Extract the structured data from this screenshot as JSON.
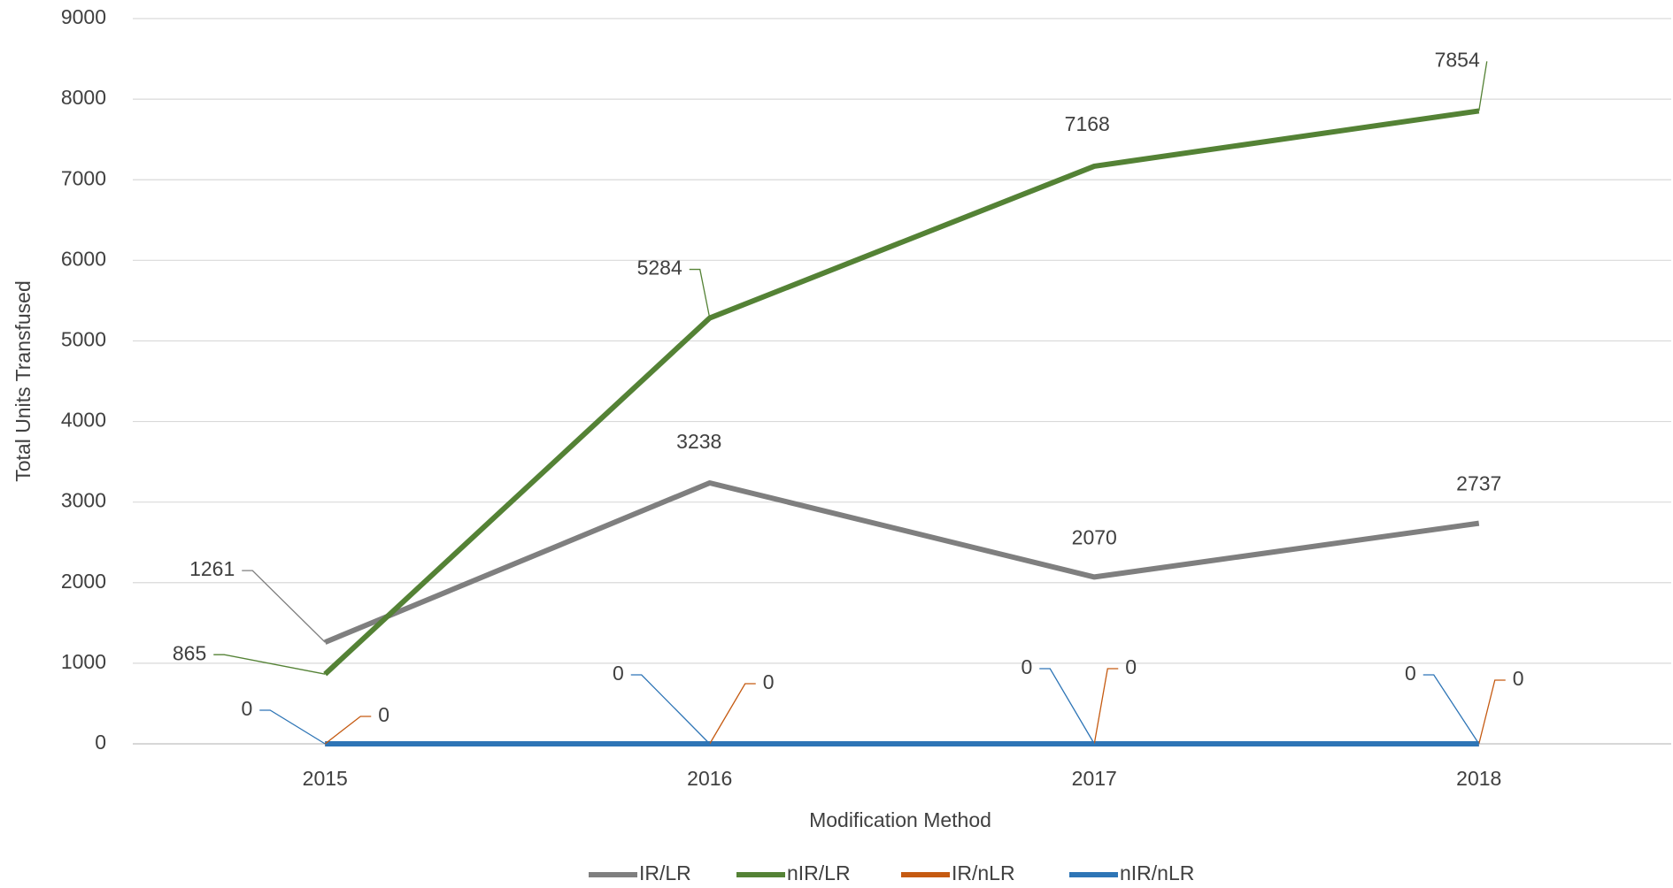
{
  "chart_data": {
    "type": "line",
    "xlabel": "Modification Method",
    "ylabel": "Total Units Transfused",
    "categories": [
      "2015",
      "2016",
      "2017",
      "2018"
    ],
    "series": [
      {
        "name": "IR/LR",
        "color": "#7f7f7f",
        "values": [
          1261,
          3238,
          2070,
          2737
        ]
      },
      {
        "name": "nIR/LR",
        "color": "#548235",
        "values": [
          865,
          5284,
          7168,
          7854
        ]
      },
      {
        "name": "IR/nLR",
        "color": "#c55a11",
        "values": [
          0,
          0,
          0,
          0
        ]
      },
      {
        "name": "nIR/nLR",
        "color": "#2e75b6",
        "values": [
          0,
          0,
          0,
          0
        ]
      }
    ],
    "ylim": [
      0,
      9000
    ],
    "yticks": [
      0,
      1000,
      2000,
      3000,
      4000,
      5000,
      6000,
      7000,
      8000,
      9000
    ],
    "grid": true,
    "legend": "bottom"
  }
}
